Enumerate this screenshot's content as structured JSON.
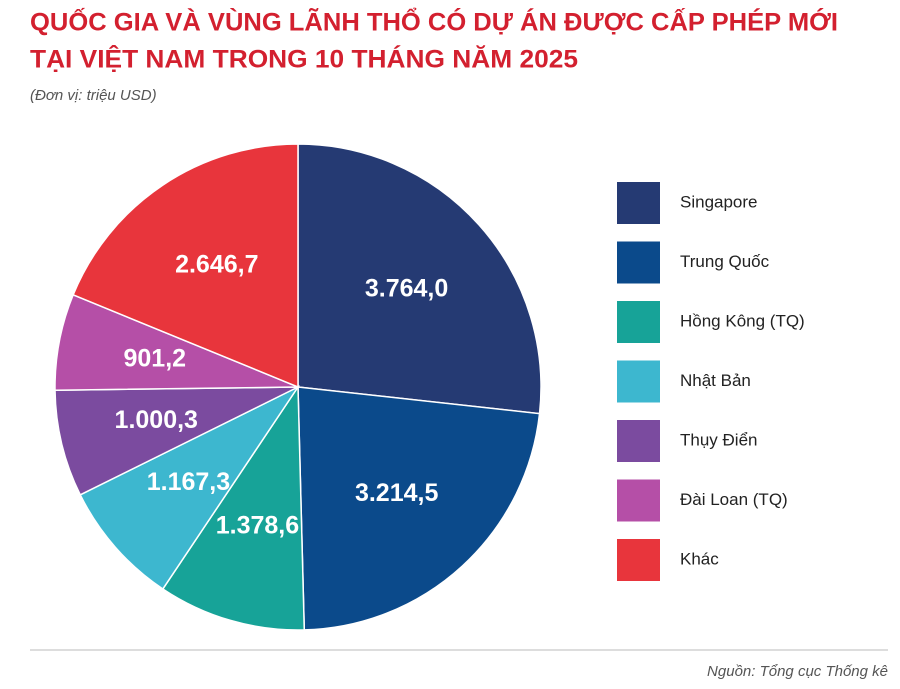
{
  "chart_data": {
    "type": "pie",
    "title": [
      "QUỐC GIA VÀ VÙNG LÃNH THỔ CÓ DỰ ÁN ĐƯỢC CẤP PHÉP MỚI",
      "TẠI VIỆT NAM TRONG 10 THÁNG NĂM 2025"
    ],
    "subtitle": "(Đơn vị: triệu USD)",
    "categories": [
      "Singapore",
      "Trung Quốc",
      "Hồng Kông (TQ)",
      "Nhật Bản",
      "Thụy Điển",
      "Đài Loan (TQ)",
      "Khác"
    ],
    "values": [
      3764.0,
      3214.5,
      1378.6,
      1167.3,
      1000.3,
      901.2,
      2646.7
    ],
    "value_labels": [
      "3.764,0",
      "3.214,5",
      "1.378,6",
      "1.167,3",
      "1.000,3",
      "901,2",
      "2.646,7"
    ],
    "colors": [
      "#253a73",
      "#0b4a8b",
      "#17a398",
      "#3db7cf",
      "#7b4b9f",
      "#b54fa7",
      "#e8353c"
    ],
    "legend": "right",
    "source": "Nguồn: Tổng cục Thống kê"
  }
}
